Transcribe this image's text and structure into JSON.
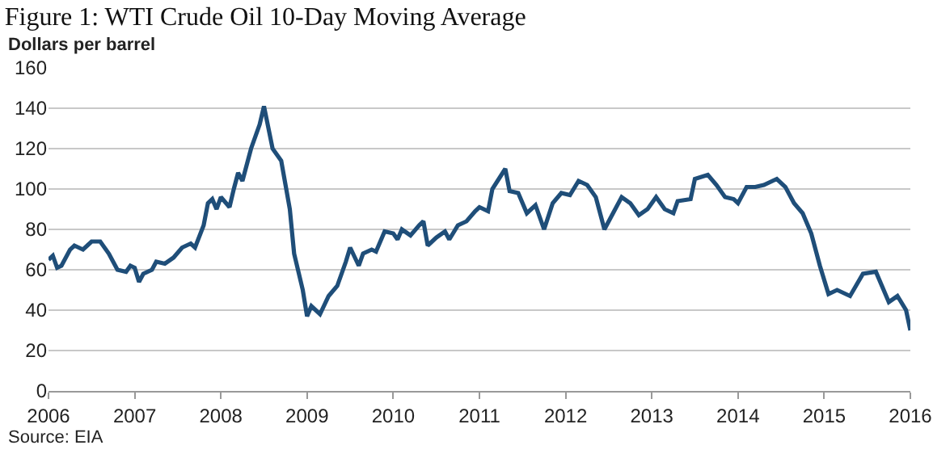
{
  "chart_data": {
    "type": "line",
    "title": "Figure 1: WTI Crude Oil 10-Day Moving Average",
    "ylabel": "Dollars per barrel",
    "annotations": [
      "Source: EIA"
    ],
    "x": [
      2006.0,
      2006.05,
      2006.1,
      2006.15,
      2006.25,
      2006.3,
      2006.4,
      2006.45,
      2006.5,
      2006.6,
      2006.7,
      2006.8,
      2006.9,
      2006.95,
      2007.0,
      2007.05,
      2007.1,
      2007.2,
      2007.25,
      2007.35,
      2007.45,
      2007.55,
      2007.65,
      2007.7,
      2007.8,
      2007.85,
      2007.9,
      2007.95,
      2008.0,
      2008.1,
      2008.15,
      2008.2,
      2008.25,
      2008.35,
      2008.45,
      2008.5,
      2008.6,
      2008.7,
      2008.75,
      2008.8,
      2008.85,
      2008.95,
      2009.0,
      2009.05,
      2009.15,
      2009.25,
      2009.35,
      2009.45,
      2009.5,
      2009.6,
      2009.65,
      2009.75,
      2009.8,
      2009.9,
      2010.0,
      2010.05,
      2010.1,
      2010.2,
      2010.3,
      2010.35,
      2010.4,
      2010.5,
      2010.6,
      2010.65,
      2010.75,
      2010.85,
      2010.95,
      2011.0,
      2011.1,
      2011.15,
      2011.3,
      2011.35,
      2011.45,
      2011.55,
      2011.65,
      2011.75,
      2011.85,
      2011.95,
      2012.05,
      2012.15,
      2012.25,
      2012.35,
      2012.45,
      2012.55,
      2012.65,
      2012.75,
      2012.85,
      2012.95,
      2013.05,
      2013.15,
      2013.25,
      2013.3,
      2013.45,
      2013.5,
      2013.65,
      2013.75,
      2013.85,
      2013.95,
      2014.0,
      2014.1,
      2014.2,
      2014.3,
      2014.45,
      2014.55,
      2014.65,
      2014.75,
      2014.85,
      2014.95,
      2015.05,
      2015.15,
      2015.3,
      2015.45,
      2015.6,
      2015.75,
      2015.85,
      2015.95,
      2016.0
    ],
    "series": [
      {
        "color": "#1f4e79",
        "values": [
          65,
          67,
          61,
          62,
          70,
          72,
          70,
          72,
          74,
          74,
          68,
          60,
          59,
          62,
          61,
          54,
          58,
          60,
          64,
          63,
          66,
          71,
          73,
          71,
          82,
          93,
          95,
          90,
          96,
          91,
          100,
          108,
          104,
          120,
          132,
          141,
          120,
          114,
          102,
          90,
          68,
          50,
          37,
          42,
          38,
          47,
          52,
          64,
          71,
          62,
          68,
          70,
          69,
          79,
          78,
          75,
          80,
          77,
          82,
          84,
          72,
          76,
          79,
          75,
          82,
          84,
          89,
          91,
          89,
          100,
          110,
          99,
          98,
          88,
          92,
          80,
          93,
          98,
          97,
          104,
          102,
          96,
          80,
          88,
          96,
          93,
          87,
          90,
          96,
          90,
          88,
          94,
          95,
          105,
          107,
          102,
          96,
          95,
          93,
          101,
          101,
          102,
          105,
          101,
          93,
          88,
          78,
          62,
          48,
          50,
          47,
          58,
          59,
          44,
          47,
          40,
          30
        ]
      }
    ],
    "xlim": [
      2006,
      2016
    ],
    "xticks": [
      2006,
      2007,
      2008,
      2009,
      2010,
      2011,
      2012,
      2013,
      2014,
      2015,
      2016
    ],
    "ylim": [
      0,
      160
    ],
    "yticks": [
      0,
      20,
      40,
      60,
      80,
      100,
      120,
      140,
      160
    ],
    "grid": "y",
    "marker": "none",
    "line_style": "solid"
  }
}
